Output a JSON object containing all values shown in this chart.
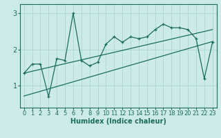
{
  "xlabel": "Humidex (Indice chaleur)",
  "bg_color": "#cceae7",
  "line_color": "#1a6b60",
  "grid_color": "#aad8d3",
  "x_data": [
    0,
    1,
    2,
    3,
    4,
    5,
    6,
    7,
    8,
    9,
    10,
    11,
    12,
    13,
    14,
    15,
    16,
    17,
    18,
    19,
    20,
    21,
    22,
    23
  ],
  "y_main": [
    1.35,
    1.6,
    1.6,
    0.7,
    1.75,
    1.7,
    3.0,
    1.7,
    1.55,
    1.65,
    2.15,
    2.35,
    2.2,
    2.35,
    2.3,
    2.35,
    2.55,
    2.7,
    2.6,
    2.6,
    2.55,
    2.3,
    1.2,
    2.2
  ],
  "ylim": [
    0.4,
    3.25
  ],
  "xlim": [
    -0.5,
    23.5
  ],
  "yticks": [
    1,
    2,
    3
  ],
  "xticks": [
    0,
    1,
    2,
    3,
    4,
    5,
    6,
    7,
    8,
    9,
    10,
    11,
    12,
    13,
    14,
    15,
    16,
    17,
    18,
    19,
    20,
    21,
    22,
    23
  ],
  "tick_fontsize": 6,
  "label_fontsize": 7
}
